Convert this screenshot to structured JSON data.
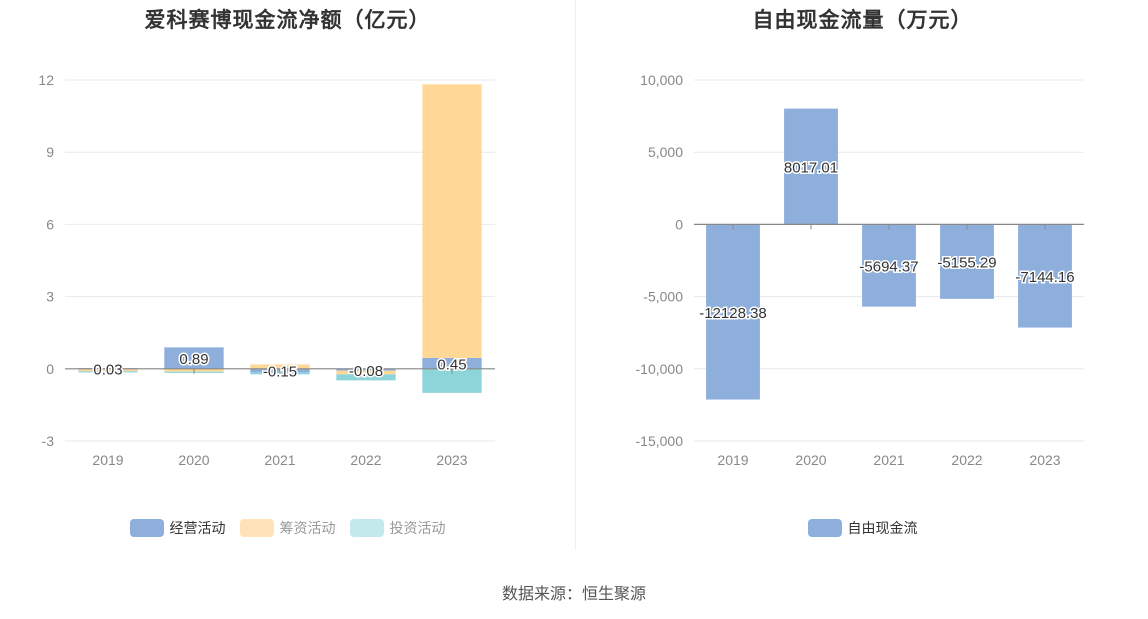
{
  "chart_data": [
    {
      "type": "bar",
      "stacked": true,
      "title": "爱科赛博现金流净额（亿元）",
      "categories": [
        "2019",
        "2020",
        "2021",
        "2022",
        "2023"
      ],
      "series": [
        {
          "name": "经营活动",
          "color": "#8eaedb",
          "values": [
            0.03,
            0.89,
            -0.15,
            -0.08,
            0.45
          ]
        },
        {
          "name": "筹资活动",
          "color": "#ffd898",
          "values": [
            -0.1,
            -0.12,
            0.18,
            -0.15,
            11.37
          ]
        },
        {
          "name": "投资活动",
          "color": "#8dd5d9",
          "values": [
            -0.05,
            -0.05,
            -0.08,
            -0.25,
            -1.0
          ]
        }
      ],
      "data_labels": [
        "0.03",
        "0.89",
        "-0.15",
        "-0.08",
        "0.45"
      ],
      "yticks": [
        "12",
        "9",
        "6",
        "3",
        "0",
        "-3"
      ],
      "ylim": [
        -3,
        12
      ],
      "grid": true,
      "legend_position": "bottom",
      "legend_colors": [
        "#8eaedb",
        "#ffe2b8",
        "#c2eaec"
      ]
    },
    {
      "type": "bar",
      "title": "自由现金流量（万元）",
      "categories": [
        "2019",
        "2020",
        "2021",
        "2022",
        "2023"
      ],
      "series": [
        {
          "name": "自由现金流",
          "color": "#8eaedb",
          "values": [
            -12128.38,
            8017.01,
            -5694.37,
            -5155.29,
            -7144.16
          ]
        }
      ],
      "data_labels": [
        "-12128.38",
        "8017.01",
        "-5694.37",
        "-5155.29",
        "-7144.16"
      ],
      "yticks": [
        "10,000",
        "5,000",
        "0",
        "-5,000",
        "-10,000",
        "-15,000"
      ],
      "ylim": [
        -15000,
        10000
      ],
      "grid": true,
      "legend_position": "bottom",
      "legend_colors": [
        "#8eaedb"
      ]
    }
  ],
  "source": "数据来源：恒生聚源"
}
